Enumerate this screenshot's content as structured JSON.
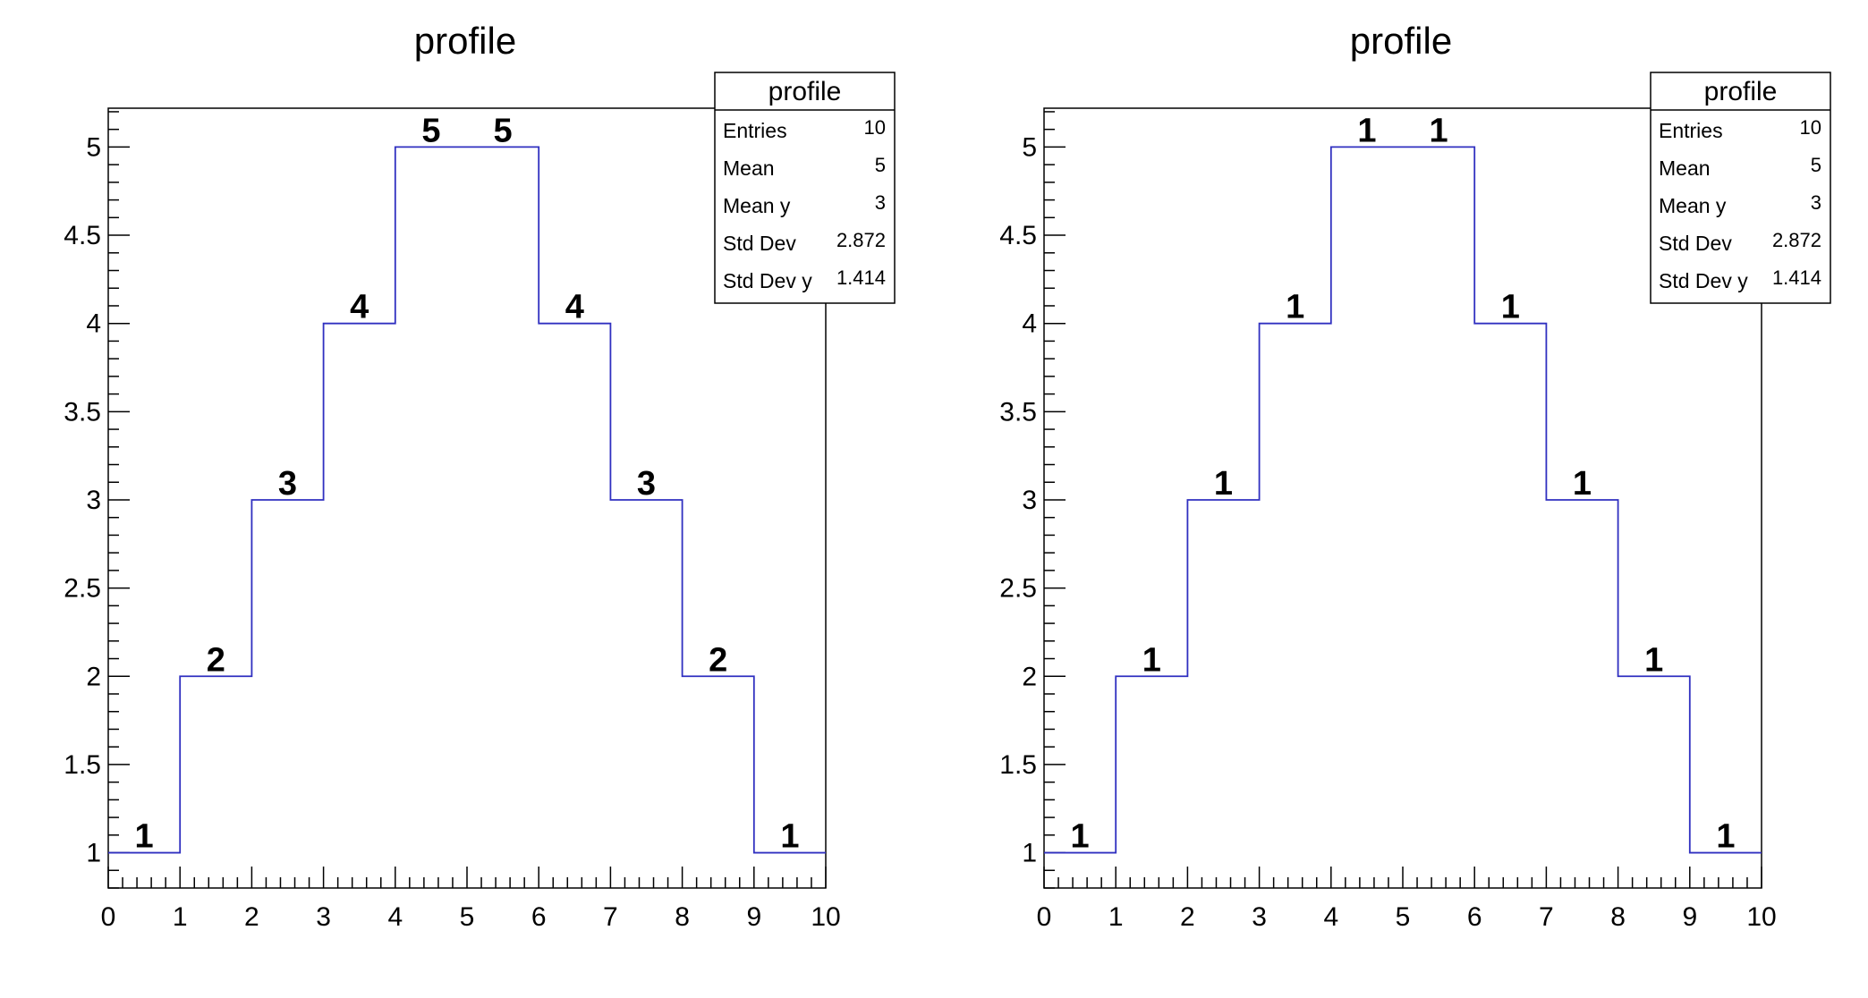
{
  "chart_data": [
    {
      "type": "step",
      "title": "profile",
      "xlabel": "",
      "ylabel": "",
      "xlim": [
        0,
        10
      ],
      "ylim": [
        0.8,
        5.22
      ],
      "x_ticks": [
        0,
        1,
        2,
        3,
        4,
        5,
        6,
        7,
        8,
        9,
        10
      ],
      "y_ticks": [
        1,
        1.5,
        2,
        2.5,
        3,
        3.5,
        4,
        4.5,
        5
      ],
      "bin_edges": [
        0,
        1,
        2,
        3,
        4,
        5,
        6,
        7,
        8,
        9,
        10
      ],
      "values": [
        1,
        2,
        3,
        4,
        5,
        5,
        4,
        3,
        2,
        1
      ],
      "bin_labels": [
        "1",
        "2",
        "3",
        "4",
        "5",
        "5",
        "4",
        "3",
        "2",
        "1"
      ],
      "line_color": "#3030c0",
      "stats": {
        "title": "profile",
        "rows": [
          {
            "label": "Entries",
            "value": "10"
          },
          {
            "label": "Mean",
            "value": "5"
          },
          {
            "label": "Mean y",
            "value": "3"
          },
          {
            "label": "Std Dev",
            "value": "2.872"
          },
          {
            "label": "Std Dev y",
            "value": "1.414"
          }
        ]
      }
    },
    {
      "type": "step",
      "title": "profile",
      "xlabel": "",
      "ylabel": "",
      "xlim": [
        0,
        10
      ],
      "ylim": [
        0.8,
        5.22
      ],
      "x_ticks": [
        0,
        1,
        2,
        3,
        4,
        5,
        6,
        7,
        8,
        9,
        10
      ],
      "y_ticks": [
        1,
        1.5,
        2,
        2.5,
        3,
        3.5,
        4,
        4.5,
        5
      ],
      "bin_edges": [
        0,
        1,
        2,
        3,
        4,
        5,
        6,
        7,
        8,
        9,
        10
      ],
      "values": [
        1,
        2,
        3,
        4,
        5,
        5,
        4,
        3,
        2,
        1
      ],
      "bin_labels": [
        "1",
        "1",
        "1",
        "1",
        "1",
        "1",
        "1",
        "1",
        "1",
        "1"
      ],
      "line_color": "#3030c0",
      "stats": {
        "title": "profile",
        "rows": [
          {
            "label": "Entries",
            "value": "10"
          },
          {
            "label": "Mean",
            "value": "5"
          },
          {
            "label": "Mean y",
            "value": "3"
          },
          {
            "label": "Std Dev",
            "value": "2.872"
          },
          {
            "label": "Std Dev y",
            "value": "1.414"
          }
        ]
      }
    }
  ]
}
